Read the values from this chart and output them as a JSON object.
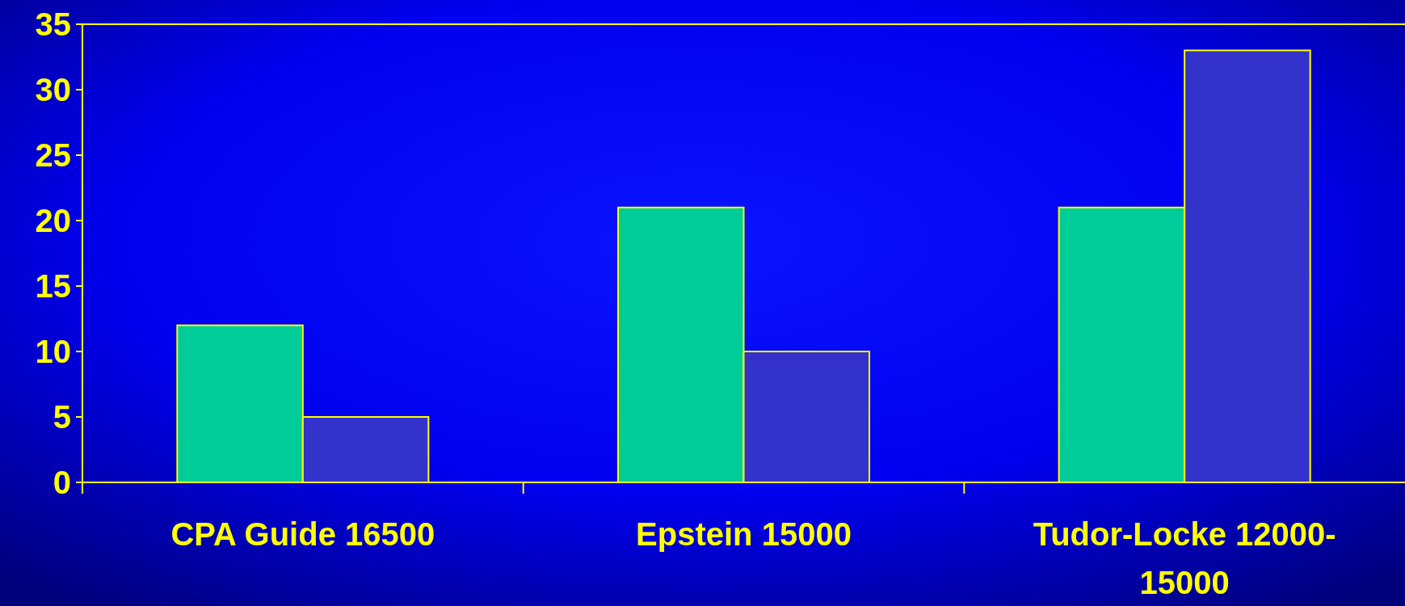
{
  "chart_data": {
    "type": "bar",
    "categories": [
      "CPA Guide 16500",
      "Epstein 15000",
      "Tudor-Locke 12000-15000"
    ],
    "series": [
      {
        "color": "#00cc99",
        "values": [
          12,
          21,
          21
        ]
      },
      {
        "color": "#3333cc",
        "values": [
          5,
          10,
          33
        ]
      }
    ],
    "ylim": [
      0,
      35
    ],
    "yticks": [
      0,
      5,
      10,
      15,
      20,
      25,
      30,
      35
    ],
    "grid": false
  }
}
